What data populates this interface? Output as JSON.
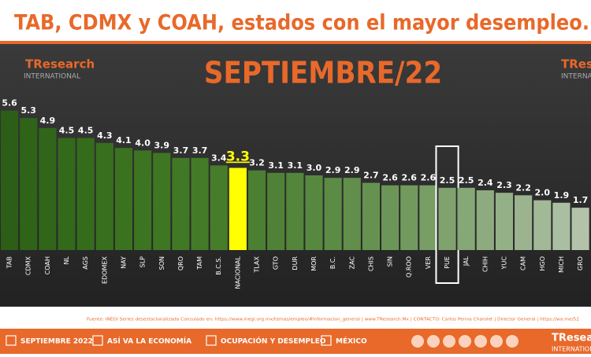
{
  "header": {
    "title": "TAB, CDMX y COAH, estados con el mayor desempleo."
  },
  "logo": {
    "name": "TResearch",
    "tagline": "INTERNATIONAL"
  },
  "chart_data": {
    "type": "bar",
    "title": "SEPTIEMBRE/22",
    "categories": [
      "TAB",
      "CDMX",
      "COAH",
      "NL",
      "AGS",
      "EDOMEX",
      "NAY",
      "SLP",
      "SON",
      "QRO",
      "TAM",
      "B.C.S.",
      "NACIONAL",
      "TLAX",
      "GTO",
      "DUR",
      "MOR",
      "B.C.",
      "ZAC",
      "CHIS",
      "SIN",
      "Q.ROO",
      "VER",
      "PUE",
      "JAL",
      "CHIH",
      "YUC",
      "CAM",
      "HGO",
      "MICH",
      "GRO"
    ],
    "values": [
      5.6,
      5.3,
      4.9,
      4.5,
      4.5,
      4.3,
      4.1,
      4.0,
      3.9,
      3.7,
      3.7,
      3.4,
      3.3,
      3.2,
      3.1,
      3.1,
      3.0,
      2.9,
      2.9,
      2.7,
      2.6,
      2.6,
      2.6,
      2.5,
      2.5,
      2.4,
      2.3,
      2.2,
      2.0,
      1.9,
      1.7
    ],
    "value_labels": [
      "5.6",
      "5.3",
      "4.9",
      "4.5",
      "4.5",
      "4.3",
      "4.1",
      "4.0",
      "3.9",
      "3.7",
      "3.7",
      "3.4",
      "3.3",
      "3.2",
      "3.1",
      "3.1",
      "3.0",
      "2.9",
      "2.9",
      "2.7",
      "2.6",
      "2.6",
      "2.6",
      "2.5",
      "2.5",
      "2.4",
      "2.3",
      "2.2",
      "2.0",
      "1.9",
      "1.7"
    ],
    "colors": [
      "#2c5e17",
      "#2f6318",
      "#31661a",
      "#33691b",
      "#356c1c",
      "#386f1e",
      "#3a721f",
      "#3c7421",
      "#3e7623",
      "#417825",
      "#437a27",
      "#467c2a",
      "#ffff00",
      "#4b7f31",
      "#4f8236",
      "#53853a",
      "#57883f",
      "#5c8b45",
      "#618f4b",
      "#669251",
      "#6c9658",
      "#729a5f",
      "#789e66",
      "#7fa26e",
      "#86a776",
      "#8dab7e",
      "#94b087",
      "#9bb48f",
      "#a2b998",
      "#aabea1",
      "#b2c3aa"
    ],
    "ylim": [
      0,
      6
    ],
    "emphasis": "NACIONAL",
    "highlight": "PUE"
  },
  "footer": {
    "source": "Fuente: INEGI Series desestacionalizada Consulado en: https://www.inegi.org.mx/temas/empleo/#Informacion_general | www.TResearch.Mx | CONTACTO: Carlos Penna Charolet | Director General | https://wa.me/52",
    "items": [
      "SEPTIEMBRE 2022",
      "ASÍ VA LA ECONOMÍA",
      "OCUPACIÓN Y DESEMPLEO",
      "MÉXICO"
    ]
  }
}
